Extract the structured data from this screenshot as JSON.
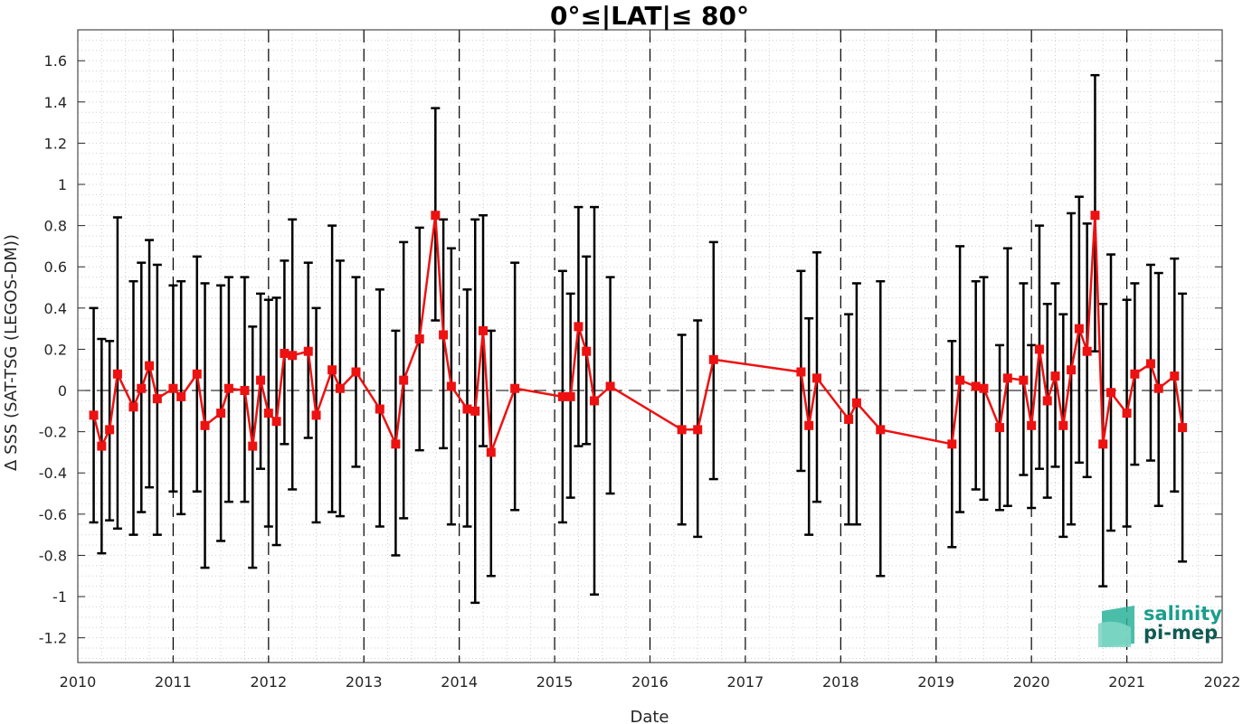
{
  "chart_data": {
    "type": "line",
    "title": "0°≤|LAT|≤ 80°",
    "xlabel": "Date",
    "ylabel": "Δ SSS (SAT-TSG (LEGOS-DM))",
    "xlim": [
      "2010-01-01",
      "2022-01-01"
    ],
    "ylim": [
      -1.32,
      1.75
    ],
    "x_tick_labels": [
      "2010",
      "2011",
      "2012",
      "2013",
      "2014",
      "2015",
      "2016",
      "2017",
      "2018",
      "2019",
      "2020",
      "2021",
      "2022"
    ],
    "y_ticks": [
      -1.2,
      -1,
      -0.8,
      -0.6,
      -0.4,
      -0.2,
      0,
      0.2,
      0.4,
      0.6,
      0.8,
      1,
      1.2,
      1.4,
      1.6
    ],
    "y_tick_labels": [
      "-1.2",
      "-1",
      "-0.8",
      "-0.6",
      "-0.4",
      "-0.2",
      "0",
      "0.2",
      "0.4",
      "0.6",
      "0.8",
      "1",
      "1.2",
      "1.4",
      "1.6"
    ],
    "grid": "minor dotted",
    "year_lines": "dashed vertical at each year",
    "zero_line": "dashed horizontal at 0",
    "colors": {
      "series": "#ee1111",
      "errorbar": "#000000",
      "logo": "#1a9e8c"
    },
    "series": [
      {
        "x": [
          "2010-03",
          "2010-04",
          "2010-05",
          "2010-06",
          "2010-08",
          "2010-09",
          "2010-10",
          "2010-11",
          "2011-01",
          "2011-02",
          "2011-04",
          "2011-05",
          "2011-07",
          "2011-08",
          "2011-10",
          "2011-11",
          "2011-12",
          "2012-01",
          "2012-02",
          "2012-03",
          "2012-04",
          "2012-06",
          "2012-07",
          "2012-09",
          "2012-10",
          "2012-12",
          "2013-03",
          "2013-05",
          "2013-06",
          "2013-08",
          "2013-10",
          "2013-11",
          "2013-12",
          "2014-02",
          "2014-03",
          "2014-04",
          "2014-05",
          "2014-08",
          "2015-02",
          "2015-03",
          "2015-04",
          "2015-05",
          "2015-06",
          "2015-08",
          "2016-05",
          "2016-07",
          "2016-09",
          "2017-08",
          "2017-09",
          "2017-10",
          "2018-02",
          "2018-03",
          "2018-06",
          "2019-03",
          "2019-04",
          "2019-06",
          "2019-07",
          "2019-09",
          "2019-10",
          "2019-12",
          "2020-01",
          "2020-02",
          "2020-03",
          "2020-04",
          "2020-05",
          "2020-06",
          "2020-07",
          "2020-08",
          "2020-09",
          "2020-10",
          "2020-11",
          "2021-01",
          "2021-02",
          "2021-04",
          "2021-05",
          "2021-07",
          "2021-08"
        ],
        "values": [
          -0.12,
          -0.27,
          -0.19,
          0.08,
          -0.08,
          0.01,
          0.12,
          -0.04,
          0.01,
          -0.03,
          0.08,
          -0.17,
          -0.11,
          0.01,
          0.0,
          -0.27,
          0.05,
          -0.11,
          -0.15,
          0.18,
          0.17,
          0.19,
          -0.12,
          0.1,
          0.01,
          0.09,
          -0.09,
          -0.26,
          0.05,
          0.25,
          0.85,
          0.27,
          0.02,
          -0.09,
          -0.1,
          0.29,
          -0.3,
          0.01,
          -0.03,
          -0.03,
          0.31,
          0.19,
          -0.05,
          0.02,
          -0.19,
          -0.19,
          0.15,
          0.09,
          -0.17,
          0.06,
          -0.14,
          -0.06,
          -0.19,
          -0.26,
          0.05,
          0.02,
          0.01,
          -0.18,
          0.06,
          0.05,
          -0.17,
          0.2,
          -0.05,
          0.07,
          -0.17,
          0.1,
          0.3,
          0.19,
          0.85,
          -0.26,
          -0.01,
          -0.11,
          0.08,
          0.13,
          0.01,
          0.07,
          -0.18
        ],
        "upper": [
          0.4,
          0.25,
          0.24,
          0.84,
          0.53,
          0.62,
          0.73,
          0.61,
          0.51,
          0.53,
          0.65,
          0.52,
          0.51,
          0.55,
          0.55,
          0.31,
          0.47,
          0.44,
          0.45,
          0.63,
          0.83,
          0.62,
          0.4,
          0.8,
          0.63,
          0.55,
          0.49,
          0.29,
          0.72,
          0.79,
          1.37,
          0.83,
          0.69,
          0.49,
          0.83,
          0.85,
          0.29,
          0.62,
          0.58,
          0.47,
          0.89,
          0.65,
          0.89,
          0.55,
          0.27,
          0.34,
          0.72,
          0.58,
          0.35,
          0.67,
          0.37,
          0.52,
          0.53,
          0.24,
          0.7,
          0.53,
          0.55,
          0.22,
          0.69,
          0.52,
          0.22,
          0.8,
          0.42,
          0.52,
          0.37,
          0.86,
          0.94,
          0.81,
          1.53,
          0.42,
          0.66,
          0.44,
          0.52,
          0.61,
          0.57,
          0.64,
          0.47
        ],
        "lower": [
          -0.64,
          -0.79,
          -0.63,
          -0.67,
          -0.7,
          -0.59,
          -0.47,
          -0.7,
          -0.49,
          -0.6,
          -0.49,
          -0.86,
          -0.73,
          -0.54,
          -0.54,
          -0.86,
          -0.38,
          -0.66,
          -0.75,
          -0.26,
          -0.48,
          -0.23,
          -0.64,
          -0.59,
          -0.61,
          -0.37,
          -0.66,
          -0.8,
          -0.62,
          -0.29,
          0.34,
          -0.28,
          -0.65,
          -0.66,
          -1.03,
          -0.27,
          -0.9,
          -0.58,
          -0.64,
          -0.52,
          -0.27,
          -0.26,
          -0.99,
          -0.5,
          -0.65,
          -0.71,
          -0.43,
          -0.39,
          -0.7,
          -0.54,
          -0.65,
          -0.65,
          -0.9,
          -0.76,
          -0.59,
          -0.48,
          -0.53,
          -0.58,
          -0.56,
          -0.41,
          -0.57,
          -0.38,
          -0.52,
          -0.37,
          -0.71,
          -0.65,
          -0.35,
          -0.42,
          0.19,
          -0.95,
          -0.68,
          -0.66,
          -0.36,
          -0.34,
          -0.56,
          -0.49,
          -0.83
        ]
      }
    ]
  },
  "logo": {
    "line1": "salinity",
    "line2": "pi-mep"
  }
}
